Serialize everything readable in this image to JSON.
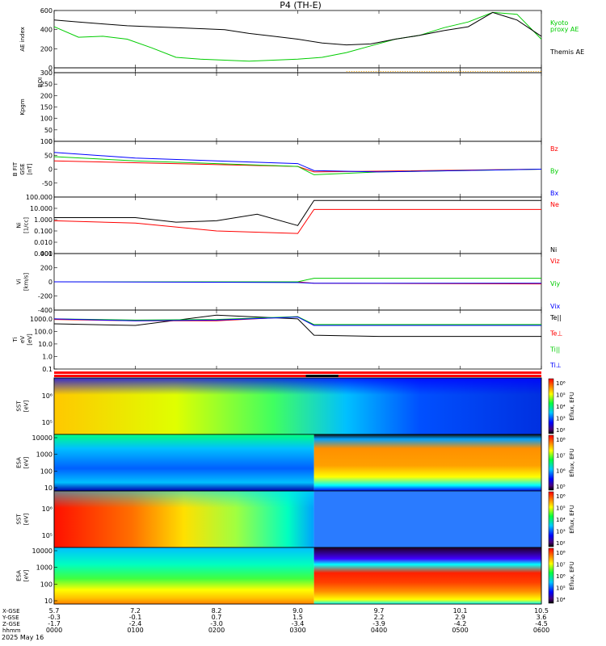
{
  "title": "P4 (TH-E)",
  "date_label": "2025 May 16",
  "colorbar_unit": "Eflux, EFU",
  "chart_data": [
    {
      "id": "ae",
      "type": "line",
      "ylabel": "AE index",
      "ylim": [
        0,
        600
      ],
      "yticks": [
        "0",
        "200",
        "400",
        "600"
      ],
      "series": [
        {
          "name": "Kyoto\nproxy AE",
          "color": "#00cc00",
          "x": [
            0,
            30,
            60,
            90,
            120,
            150,
            180,
            210,
            240,
            270,
            300,
            330,
            360,
            390,
            420,
            450,
            480,
            510,
            540,
            570,
            600
          ],
          "values": [
            430,
            320,
            330,
            300,
            210,
            110,
            90,
            80,
            70,
            80,
            90,
            110,
            160,
            230,
            300,
            340,
            420,
            480,
            580,
            560,
            300
          ]
        },
        {
          "name": "Themis AE",
          "color": "#000000",
          "x": [
            0,
            30,
            60,
            90,
            120,
            150,
            180,
            210,
            240,
            270,
            300,
            330,
            360,
            390,
            420,
            450,
            480,
            510,
            540,
            570,
            600
          ],
          "values": [
            500,
            480,
            460,
            440,
            430,
            420,
            410,
            400,
            360,
            330,
            300,
            260,
            240,
            250,
            300,
            340,
            390,
            430,
            580,
            500,
            330
          ]
        }
      ]
    },
    {
      "id": "roi",
      "type": "line",
      "ylabel": "ROI",
      "note": "dotted orange segment x 360-600",
      "series": [
        {
          "name": "ROI",
          "color": "#ffaa00",
          "x": [
            360,
            600
          ],
          "values": [
            0,
            0
          ]
        }
      ]
    },
    {
      "id": "kp",
      "type": "line",
      "ylabel": "Kpgm",
      "ylim": [
        0,
        300
      ],
      "yticks": [
        "0",
        "50",
        "100",
        "150",
        "200",
        "250",
        "300"
      ],
      "series": [
        {
          "name": "Kp",
          "color": "#000000",
          "x": [],
          "values": []
        }
      ]
    },
    {
      "id": "bfield",
      "type": "line",
      "ylabel": "B FIT\nGSE\n[nT]",
      "ylim": [
        -100,
        100
      ],
      "yticks": [
        "-50",
        "0",
        "50",
        "100"
      ],
      "series": [
        {
          "name": "Bz",
          "color": "#ff0000",
          "x": [
            0,
            300,
            320,
            600
          ],
          "values": [
            30,
            10,
            -10,
            0
          ]
        },
        {
          "name": "By",
          "color": "#00cc00",
          "x": [
            0,
            100,
            200,
            300,
            320,
            400,
            500,
            600
          ],
          "values": [
            45,
            30,
            20,
            10,
            -20,
            -10,
            -5,
            0
          ]
        },
        {
          "name": "Bx",
          "color": "#0000ff",
          "x": [
            0,
            100,
            200,
            300,
            320,
            400,
            500,
            600
          ],
          "values": [
            60,
            40,
            30,
            20,
            -5,
            -10,
            -5,
            0
          ]
        }
      ]
    },
    {
      "id": "density",
      "type": "line",
      "ylabel": "Ni\n[1/cc]",
      "yscale": "log",
      "ylim": [
        0.001,
        100
      ],
      "yticks": [
        "0.001",
        "0.010",
        "0.100",
        "1.000",
        "10.000",
        "100.000"
      ],
      "series": [
        {
          "name": "Ne",
          "color": "#ff0000",
          "x": [
            0,
            100,
            200,
            300,
            320,
            400,
            500,
            600
          ],
          "values": [
            0.8,
            0.5,
            0.1,
            0.06,
            8,
            8,
            8,
            8
          ]
        },
        {
          "name": "Ni",
          "color": "#000000",
          "x": [
            0,
            100,
            150,
            200,
            250,
            300,
            320,
            400,
            500,
            600
          ],
          "values": [
            1.5,
            1.5,
            0.6,
            0.8,
            3,
            0.3,
            50,
            50,
            50,
            50
          ]
        }
      ]
    },
    {
      "id": "velocity",
      "type": "line",
      "ylabel": "Vi\n[km/s]",
      "ylim": [
        -400,
        400
      ],
      "yticks": [
        "-400",
        "-200",
        "0",
        "200",
        "400"
      ],
      "series": [
        {
          "name": "Viz",
          "color": "#ff0000",
          "x": [
            0,
            300,
            320,
            600
          ],
          "values": [
            0,
            0,
            -20,
            -30
          ]
        },
        {
          "name": "Viy",
          "color": "#00cc00",
          "x": [
            0,
            300,
            320,
            600
          ],
          "values": [
            0,
            0,
            50,
            50
          ]
        },
        {
          "name": "Vix",
          "color": "#0000ff",
          "x": [
            0,
            300,
            320,
            600
          ],
          "values": [
            0,
            -10,
            -20,
            -20
          ]
        }
      ]
    },
    {
      "id": "temp",
      "type": "line",
      "ylabel": "Ti\neV\n[eV]",
      "yscale": "log",
      "ylim": [
        0.1,
        5000
      ],
      "yticks": [
        "0.1",
        "1.0",
        "10.0",
        "100.0",
        "1000.0"
      ],
      "series": [
        {
          "name": "Te||",
          "color": "#000000",
          "x": [
            0,
            100,
            200,
            300,
            320,
            400,
            500,
            600
          ],
          "values": [
            400,
            300,
            2000,
            1000,
            50,
            40,
            40,
            40
          ]
        },
        {
          "name": "Te⊥",
          "color": "#ff0000",
          "x": [
            0,
            100,
            200,
            300,
            320,
            600
          ],
          "values": [
            900,
            700,
            700,
            1500,
            300,
            300
          ]
        },
        {
          "name": "Ti||",
          "color": "#00cc00",
          "x": [
            0,
            100,
            200,
            300,
            320,
            600
          ],
          "values": [
            1000,
            800,
            900,
            1500,
            350,
            350
          ]
        },
        {
          "name": "Ti⊥",
          "color": "#0000ff",
          "x": [
            0,
            100,
            200,
            300,
            320,
            600
          ],
          "values": [
            1000,
            700,
            800,
            1400,
            300,
            300
          ]
        }
      ]
    },
    {
      "id": "sst_ion",
      "type": "heatmap",
      "ylabel": "SST\n[eV]",
      "yticks_sup": [
        "10⁵",
        "10⁶"
      ],
      "colorbar": {
        "ticks": [
          "10²",
          "10³",
          "10⁴",
          "10⁵",
          "10⁶"
        ]
      }
    },
    {
      "id": "esa_ion",
      "type": "heatmap",
      "ylabel": "ESA\n[eV]",
      "yticks": [
        "10",
        "100",
        "1000",
        "10000"
      ],
      "colorbar": {
        "ticks": [
          "10⁵",
          "10⁶",
          "10⁷",
          "10⁸"
        ]
      }
    },
    {
      "id": "sst_elec",
      "type": "heatmap",
      "ylabel": "SST\n[eV]",
      "yticks_sup": [
        "10⁵",
        "10⁶"
      ],
      "colorbar": {
        "ticks": [
          "10²",
          "10³",
          "10⁴",
          "10⁵",
          "10⁶"
        ]
      }
    },
    {
      "id": "esa_elec",
      "type": "heatmap",
      "ylabel": "ESA\n[eV]",
      "yticks": [
        "10",
        "100",
        "1000",
        "10000"
      ],
      "colorbar": {
        "ticks": [
          "10⁴",
          "10⁵",
          "10⁶",
          "10⁷",
          "10⁸"
        ]
      }
    }
  ],
  "x_axis": {
    "tick_times": [
      "0000",
      "0100",
      "0200",
      "0300",
      "0400",
      "0500",
      "0600"
    ],
    "rows": [
      {
        "label": "X-GSE",
        "values": [
          "5.7",
          "7.2",
          "8.2",
          "9.0",
          "9.7",
          "10.1",
          "10.5"
        ]
      },
      {
        "label": "Y-GSE",
        "values": [
          "-0.3",
          "-0.1",
          "0.7",
          "1.5",
          "2.2",
          "2.9",
          "3.6"
        ]
      },
      {
        "label": "Z-GSE",
        "values": [
          "-1.7",
          "-2.4",
          "-3.0",
          "-3.4",
          "-3.9",
          "-4.2",
          "-4.5"
        ]
      },
      {
        "label": "hhmm",
        "values": [
          "0000",
          "0100",
          "0200",
          "0300",
          "0400",
          "0500",
          "0600"
        ]
      }
    ]
  }
}
